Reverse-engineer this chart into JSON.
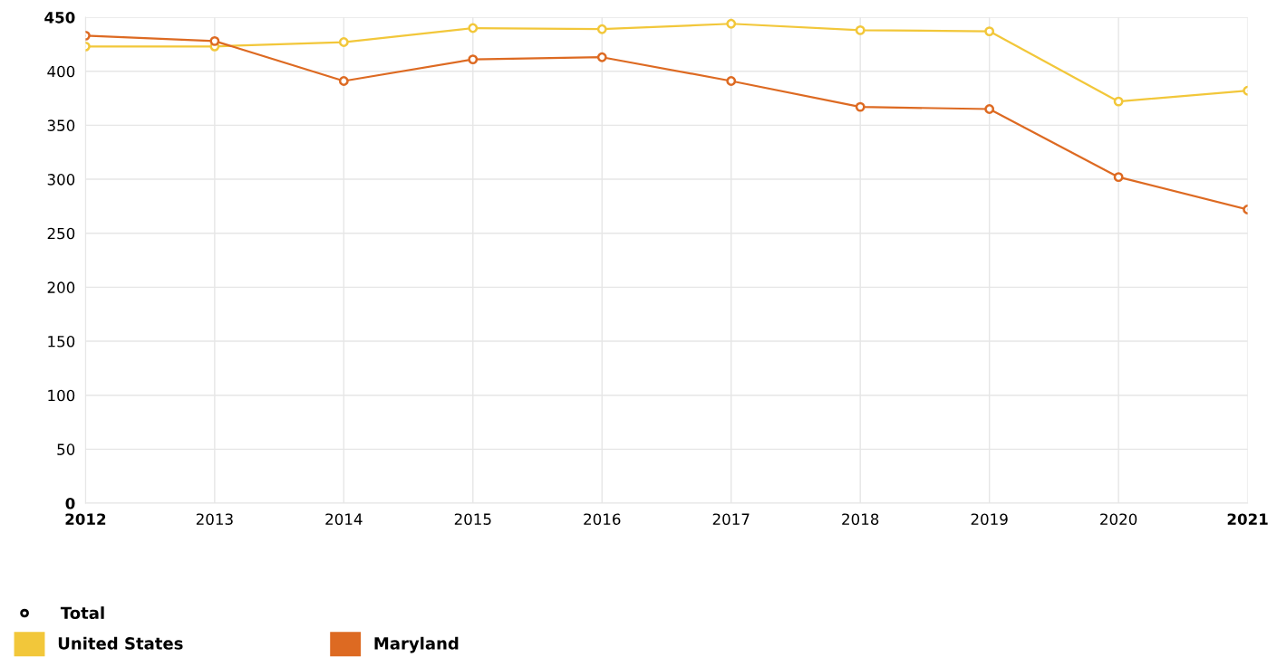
{
  "chart_data": {
    "type": "line",
    "legend_title": "Total",
    "x": [
      2012,
      2013,
      2014,
      2015,
      2016,
      2017,
      2018,
      2019,
      2020,
      2021
    ],
    "series": [
      {
        "name": "United States",
        "color": "#f2c73a",
        "values": [
          423,
          423,
          427,
          440,
          439,
          444,
          438,
          437,
          372,
          382
        ]
      },
      {
        "name": "Maryland",
        "color": "#dd6a22",
        "values": [
          433,
          428,
          391,
          411,
          413,
          391,
          367,
          365,
          302,
          272
        ]
      }
    ],
    "xlim": [
      2012,
      2021
    ],
    "xticks": [
      2012,
      2013,
      2014,
      2015,
      2016,
      2017,
      2018,
      2019,
      2020,
      2021
    ],
    "ylim": [
      0,
      450
    ],
    "yticks": [
      0,
      50,
      100,
      150,
      200,
      250,
      300,
      350,
      400,
      450
    ],
    "grid": true,
    "legend": "bottom left",
    "marker": "circle",
    "line_style": "solid"
  }
}
